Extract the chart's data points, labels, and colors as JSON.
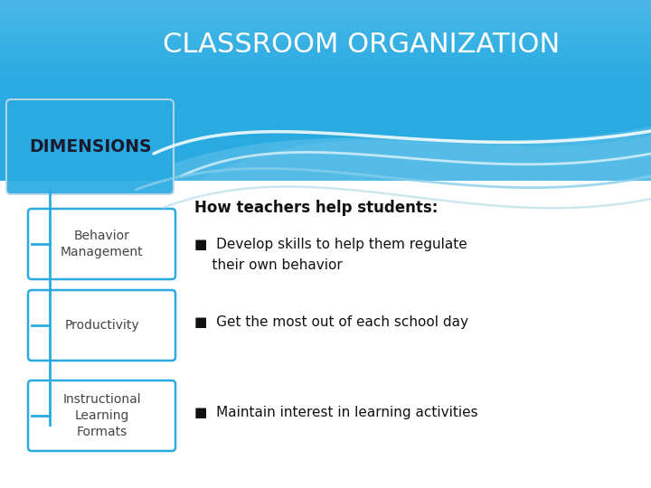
{
  "title": "CLASSROOM ORGANIZATION",
  "title_color": "#FFFFFF",
  "title_fontsize": 22,
  "bg_color": "#FFFFFF",
  "header_color": "#29ABE2",
  "dimensions_label": "DIMENSIONS",
  "dimensions_box_color": "#29ABE2",
  "dimensions_text_color": "#1A1A2E",
  "left_boxes": [
    "Behavior\nManagement",
    "Productivity",
    "Instructional\nLearning\nFormats"
  ],
  "left_box_border_color": "#29ABE2",
  "left_box_bg_color": "#FFFFFF",
  "left_box_text_color": "#444444",
  "how_teachers_label": "How teachers help students:",
  "how_teachers_fontsize": 12,
  "bullet_items": [
    "■  Develop skills to help them regulate\n    their own behavior",
    "■  Get the most out of each school day",
    "■  Maintain interest in learning activities"
  ],
  "bullet_fontsize": 11,
  "bullet_color": "#111111",
  "connector_color": "#29ABE2",
  "wave1_color": "#FFFFFF",
  "wave2_color": "#FFFFFF",
  "wave3_color": "#B8E0F7",
  "wave4_color": "#B8E0F7"
}
